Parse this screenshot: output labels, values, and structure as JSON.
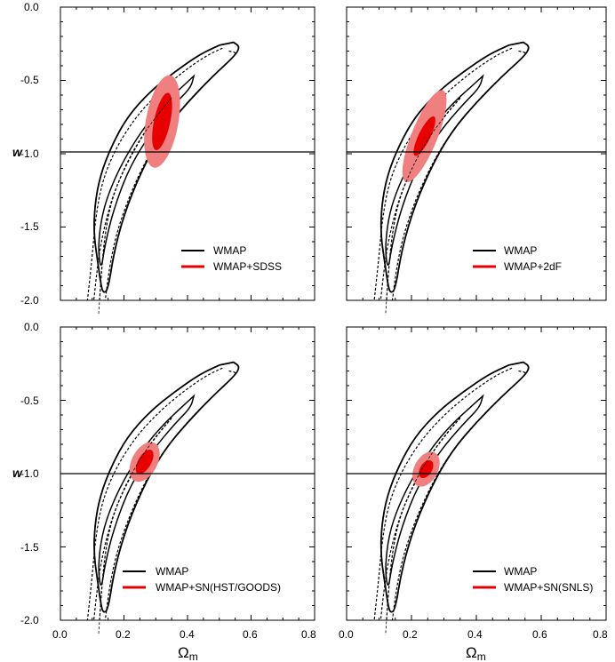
{
  "figure": {
    "xaxis_label_main": "Ω",
    "xaxis_label_sub": "m",
    "yaxis_label": "w",
    "x_ticks": [
      "0.0",
      "0.2",
      "0.4",
      "0.6",
      "0.8"
    ],
    "y_ticks": [
      "0.0",
      "-0.5",
      "-1.0",
      "-1.5",
      "-2.0"
    ],
    "reference_line_w": -1.0,
    "colors": {
      "wmap": "#000000",
      "inner": "#e60000",
      "outer": "#f08080"
    }
  },
  "chart_data": [
    {
      "type": "contour",
      "panel": "top-left",
      "xlim": [
        0.0,
        0.8
      ],
      "ylim": [
        -2.0,
        0.0
      ],
      "xlabel": "Ωm",
      "ylabel": "w",
      "legend": [
        {
          "label": "WMAP",
          "color": "#000000"
        },
        {
          "label": "WMAP+SDSS",
          "color": "#e60000"
        }
      ],
      "legend_position": "bottom-right",
      "constraint": {
        "center": [
          0.32,
          -0.78
        ],
        "inner": {
          "semi_major": 0.3,
          "semi_minor": 0.035,
          "angle_deg": 62
        },
        "outer": {
          "semi_major": 0.48,
          "semi_minor": 0.07,
          "angle_deg": 60
        }
      }
    },
    {
      "type": "contour",
      "panel": "top-right",
      "xlim": [
        0.0,
        0.8
      ],
      "ylim": [
        -2.0,
        0.0
      ],
      "xlabel": "Ωm",
      "ylabel": "w",
      "legend": [
        {
          "label": "WMAP",
          "color": "#000000"
        },
        {
          "label": "WMAP+2dF",
          "color": "#e60000"
        }
      ],
      "legend_position": "bottom-right",
      "constraint": {
        "center": [
          0.24,
          -0.88
        ],
        "inner": {
          "semi_major": 0.22,
          "semi_minor": 0.025,
          "angle_deg": 76
        },
        "outer": {
          "semi_major": 0.5,
          "semi_minor": 0.055,
          "angle_deg": 72
        }
      }
    },
    {
      "type": "contour",
      "panel": "bottom-left",
      "xlim": [
        0.0,
        0.8
      ],
      "ylim": [
        -2.0,
        0.0
      ],
      "xlabel": "Ωm",
      "ylabel": "w",
      "legend": [
        {
          "label": "WMAP",
          "color": "#000000"
        },
        {
          "label": "WMAP+SN(HST/GOODS)",
          "color": "#e60000"
        }
      ],
      "legend_position": "bottom-right",
      "constraint": {
        "center": [
          0.265,
          -0.92
        ],
        "inner": {
          "semi_major": 0.14,
          "semi_minor": 0.028,
          "angle_deg": 80
        },
        "outer": {
          "semi_major": 0.22,
          "semi_minor": 0.055,
          "angle_deg": 78
        }
      }
    },
    {
      "type": "contour",
      "panel": "bottom-right",
      "xlim": [
        0.0,
        0.8
      ],
      "ylim": [
        -2.0,
        0.0
      ],
      "xlabel": "Ωm",
      "ylabel": "w",
      "legend": [
        {
          "label": "WMAP",
          "color": "#000000"
        },
        {
          "label": "WMAP+SN(SNLS)",
          "color": "#e60000"
        }
      ],
      "legend_position": "bottom-right",
      "constraint": {
        "center": [
          0.245,
          -0.97
        ],
        "inner": {
          "semi_major": 0.1,
          "semi_minor": 0.025,
          "angle_deg": 82
        },
        "outer": {
          "semi_major": 0.19,
          "semi_minor": 0.05,
          "angle_deg": 78
        }
      }
    }
  ]
}
